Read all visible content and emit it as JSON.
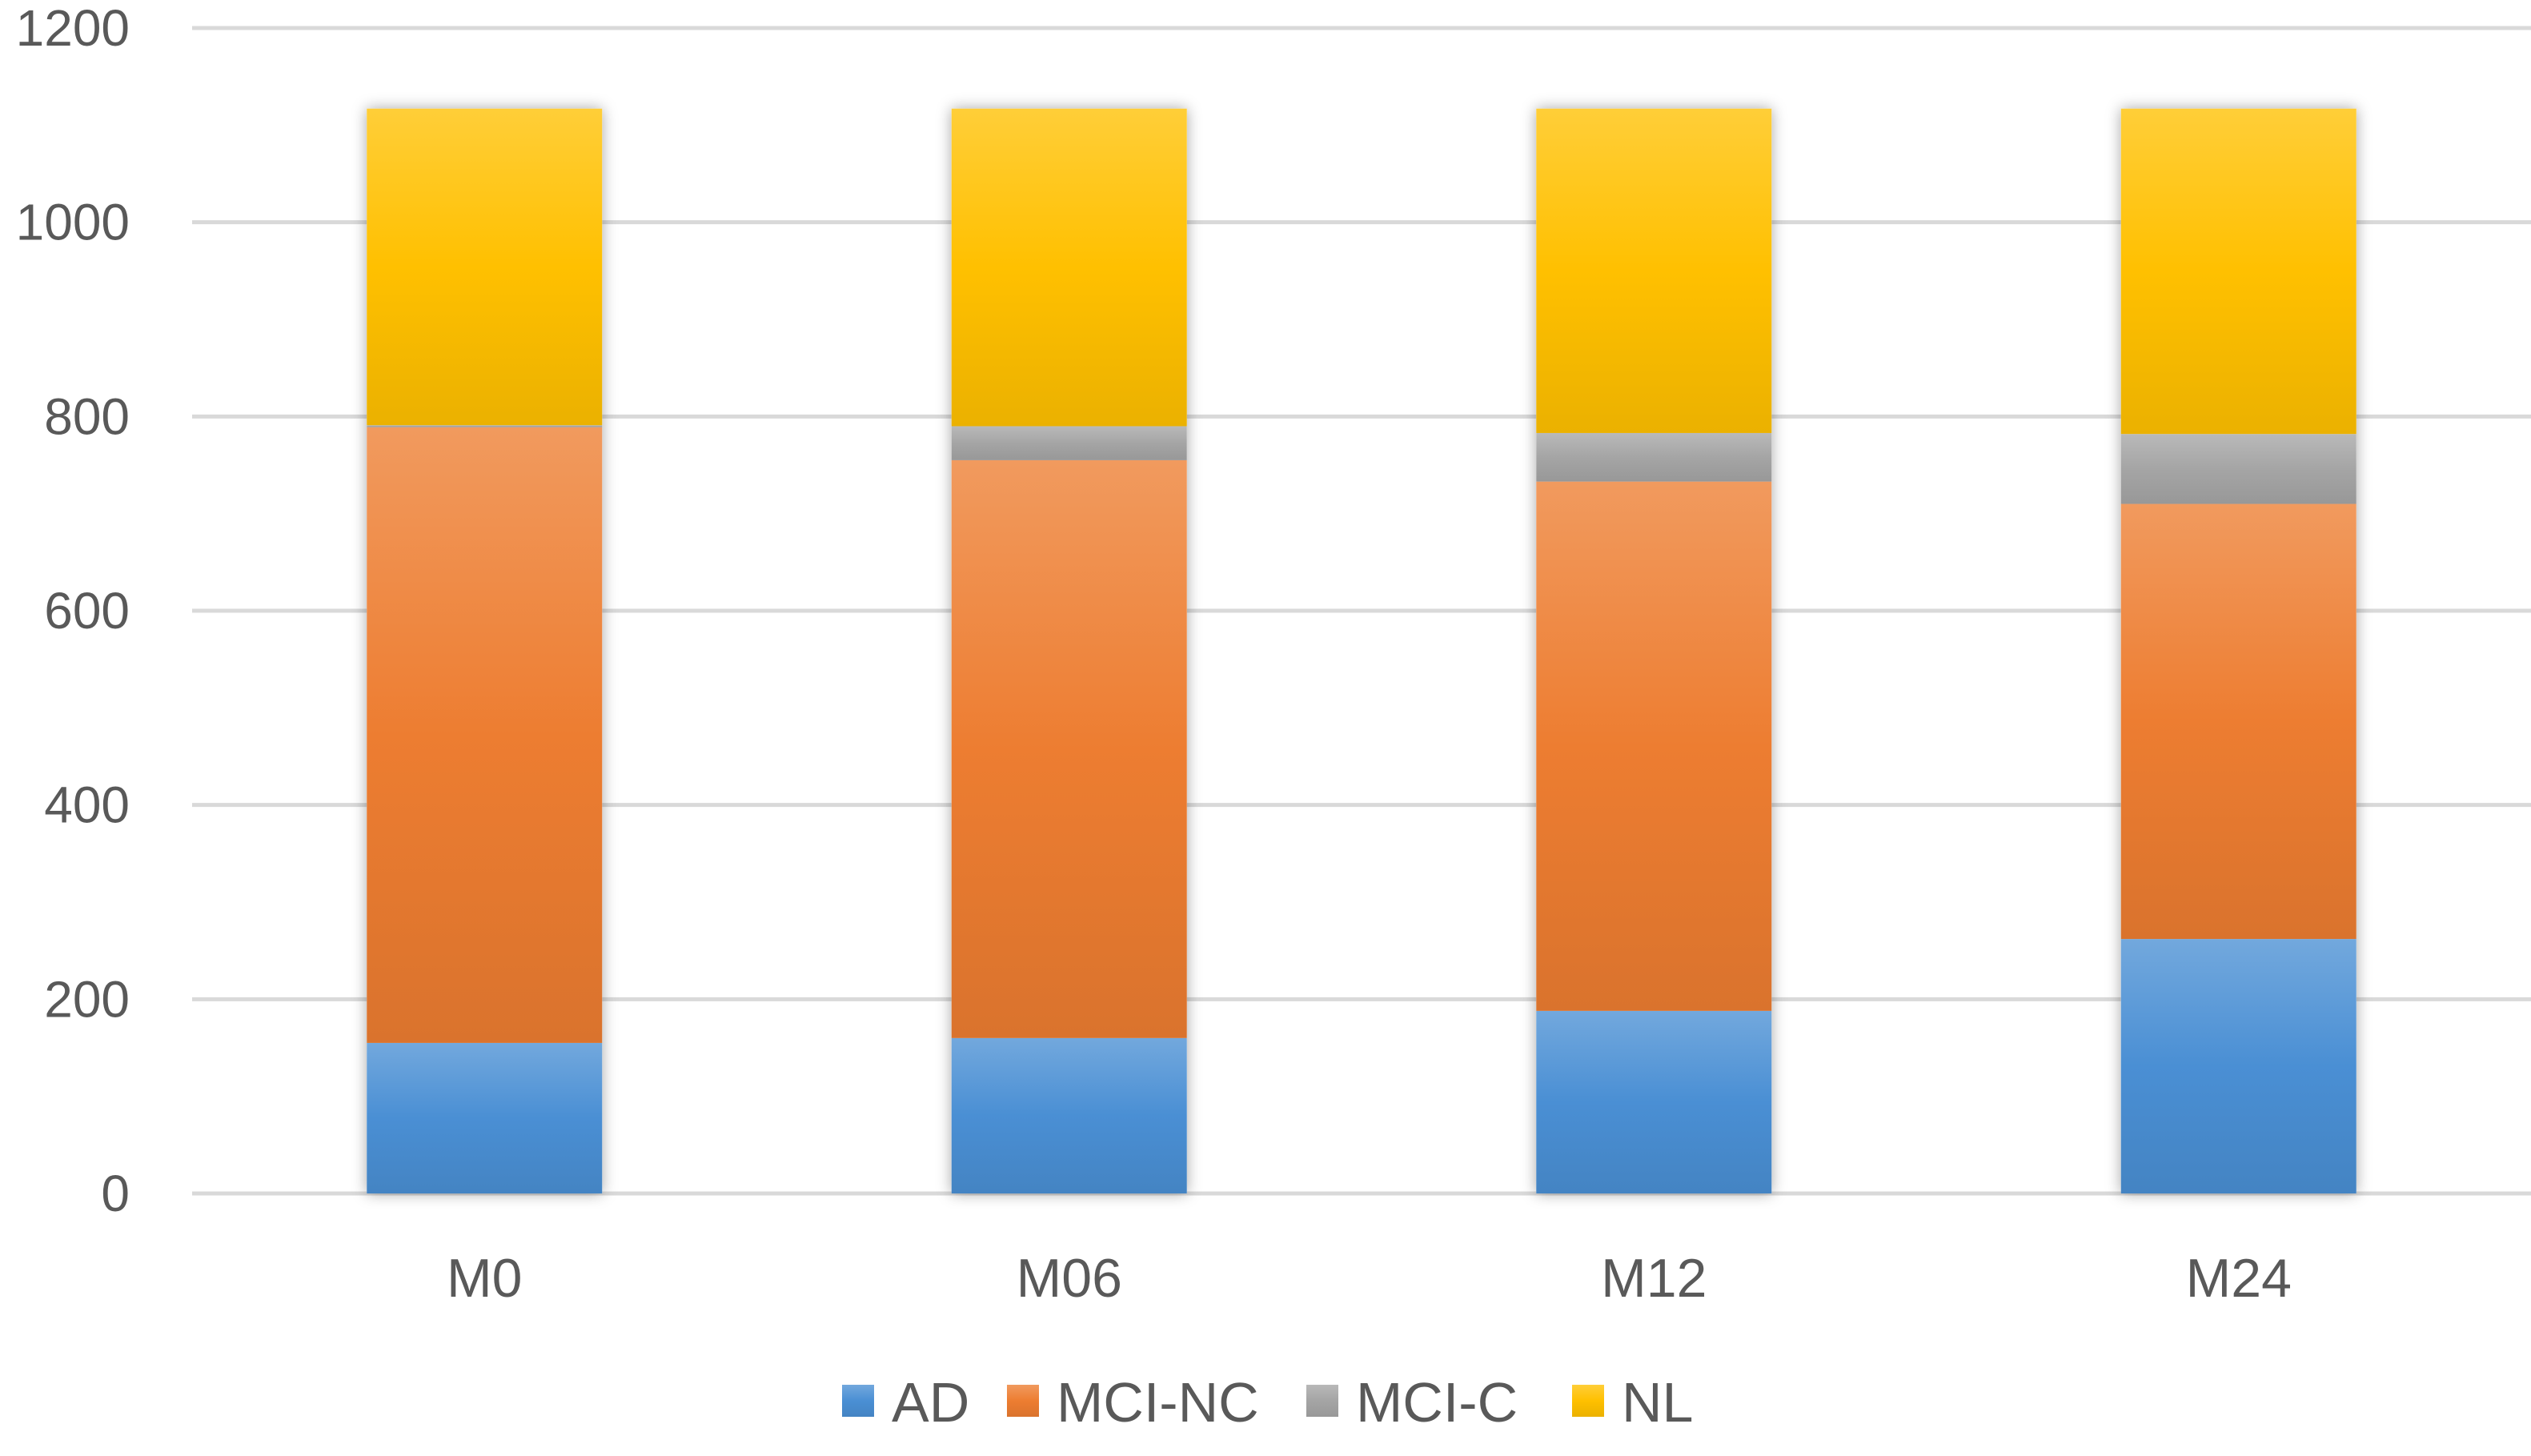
{
  "chart_data": {
    "type": "bar",
    "stacked": true,
    "title": "",
    "xlabel": "",
    "ylabel": "",
    "categories": [
      "M0",
      "M06",
      "M12",
      "M24"
    ],
    "ylim": [
      0,
      1200
    ],
    "yticks": [
      0,
      200,
      400,
      600,
      800,
      1000,
      1200
    ],
    "grid": true,
    "legend_position": "bottom",
    "series": [
      {
        "name": "AD",
        "color": "#4a8fd4",
        "values": [
          155,
          160,
          188,
          262
        ]
      },
      {
        "name": "MCI-NC",
        "color": "#ed7d31",
        "values": [
          634,
          595,
          545,
          448
        ]
      },
      {
        "name": "MCI-C",
        "color": "#a5a5a5",
        "values": [
          2,
          35,
          50,
          72
        ]
      },
      {
        "name": "NL",
        "color": "#ffc000",
        "values": [
          326,
          327,
          334,
          335
        ]
      }
    ]
  }
}
